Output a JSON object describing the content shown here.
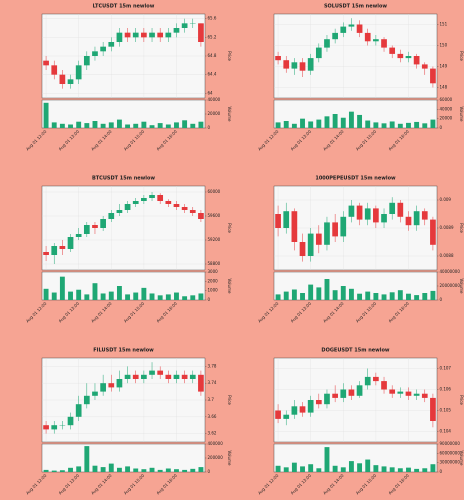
{
  "chart_data": [
    {
      "type": "candlestick",
      "title": "LTCUSDT 15m newlow",
      "y_label": "Price",
      "volume_label": "Volume",
      "up_color": "#1fa774",
      "down_color": "#e5393c",
      "volume_color": "#1fa774",
      "grid": true,
      "categories": [
        "Aug 01 12:00",
        null,
        null,
        null,
        "Aug 01 13:00",
        null,
        null,
        null,
        "Aug 01 14:00",
        null,
        null,
        null,
        "Aug 01 15:00",
        null,
        null,
        null,
        "Aug 01 16:00",
        null,
        null,
        null
      ],
      "open": [
        64.7,
        64.6,
        64.4,
        64.2,
        64.3,
        64.6,
        64.8,
        64.9,
        65.0,
        65.1,
        65.3,
        65.2,
        65.3,
        65.2,
        65.3,
        65.2,
        65.3,
        65.4,
        65.5,
        65.5
      ],
      "high": [
        64.8,
        64.7,
        64.5,
        64.4,
        64.7,
        64.9,
        65.0,
        65.1,
        65.2,
        65.4,
        65.4,
        65.4,
        65.4,
        65.4,
        65.4,
        65.4,
        65.5,
        65.6,
        65.6,
        65.5
      ],
      "low": [
        64.5,
        64.3,
        64.1,
        64.1,
        64.2,
        64.5,
        64.7,
        64.8,
        64.9,
        65.0,
        65.1,
        65.1,
        65.1,
        65.1,
        65.1,
        65.1,
        65.2,
        65.3,
        65.4,
        65.0
      ],
      "close": [
        64.6,
        64.4,
        64.2,
        64.3,
        64.6,
        64.8,
        64.9,
        65.0,
        65.1,
        65.3,
        65.2,
        65.3,
        65.2,
        65.3,
        65.2,
        65.3,
        65.4,
        65.5,
        65.5,
        65.1
      ],
      "volume": [
        36000,
        8000,
        6000,
        5000,
        9000,
        7000,
        10000,
        6000,
        8000,
        12000,
        5000,
        6000,
        9000,
        4000,
        7000,
        5000,
        8000,
        11000,
        6000,
        9000
      ],
      "ylim": [
        63.9,
        65.7
      ],
      "yticks": [
        64.0,
        64.4,
        64.8,
        65.2,
        65.6
      ],
      "volume_ylim": [
        0,
        40000
      ],
      "volume_yticks": [
        0,
        20000,
        40000
      ]
    },
    {
      "type": "candlestick",
      "title": "SOLUSDT 15m newlow",
      "y_label": "Price",
      "volume_label": "Volume",
      "up_color": "#1fa774",
      "down_color": "#e5393c",
      "volume_color": "#1fa774",
      "grid": true,
      "categories": [
        "Aug 01 12:00",
        null,
        null,
        null,
        "Aug 01 13:00",
        null,
        null,
        null,
        "Aug 01 14:00",
        null,
        null,
        null,
        "Aug 01 15:00",
        null,
        null,
        null,
        "Aug 01 16:00",
        null,
        null,
        null
      ],
      "open": [
        149.5,
        149.3,
        148.9,
        149.2,
        148.8,
        149.4,
        149.9,
        150.3,
        150.6,
        150.9,
        151.0,
        150.6,
        150.2,
        150.3,
        149.9,
        149.6,
        149.4,
        149.5,
        149.1,
        148.9
      ],
      "high": [
        149.7,
        149.5,
        149.4,
        149.4,
        149.6,
        150.1,
        150.5,
        150.8,
        151.1,
        151.3,
        151.2,
        150.8,
        150.5,
        150.4,
        150.0,
        149.8,
        149.7,
        149.6,
        149.2,
        149.0
      ],
      "low": [
        149.1,
        148.7,
        148.6,
        148.5,
        148.6,
        149.2,
        149.7,
        150.1,
        150.4,
        150.7,
        150.4,
        150.0,
        150.0,
        149.7,
        149.4,
        149.2,
        149.2,
        148.9,
        148.6,
        148.0
      ],
      "close": [
        149.3,
        148.9,
        149.2,
        148.8,
        149.4,
        149.9,
        150.3,
        150.6,
        150.9,
        151.0,
        150.6,
        150.2,
        150.3,
        149.9,
        149.6,
        149.4,
        149.5,
        149.1,
        148.9,
        148.2
      ],
      "volume": [
        12000,
        15000,
        9000,
        20000,
        14000,
        18000,
        25000,
        30000,
        22000,
        35000,
        28000,
        16000,
        12000,
        10000,
        14000,
        9000,
        11000,
        13000,
        10000,
        18000
      ],
      "ylim": [
        147.5,
        151.5
      ],
      "yticks": [
        148,
        149,
        150,
        151
      ],
      "volume_ylim": [
        0,
        60000
      ],
      "volume_yticks": [
        0,
        20000,
        40000,
        60000
      ]
    },
    {
      "type": "candlestick",
      "title": "BTCUSDT 15m newlow",
      "y_label": "Price",
      "volume_label": "Volume",
      "up_color": "#1fa774",
      "down_color": "#e5393c",
      "volume_color": "#1fa774",
      "grid": true,
      "categories": [
        "Aug 01 12:00",
        null,
        null,
        null,
        "Aug 01 13:00",
        null,
        null,
        null,
        "Aug 01 14:00",
        null,
        null,
        null,
        "Aug 01 15:00",
        null,
        null,
        null,
        "Aug 01 16:00",
        null,
        null,
        null
      ],
      "open": [
        59000,
        58950,
        59100,
        59050,
        59250,
        59300,
        59450,
        59400,
        59550,
        59650,
        59700,
        59800,
        59850,
        59900,
        59950,
        59850,
        59800,
        59750,
        59700,
        59650
      ],
      "high": [
        59100,
        59150,
        59200,
        59300,
        59400,
        59500,
        59500,
        59600,
        59700,
        59800,
        59850,
        59900,
        59950,
        60000,
        59980,
        59880,
        59850,
        59800,
        59750,
        59700
      ],
      "low": [
        58850,
        58800,
        58950,
        59000,
        59200,
        59250,
        59300,
        59350,
        59500,
        59600,
        59650,
        59750,
        59800,
        59850,
        59800,
        59750,
        59700,
        59650,
        59600,
        59500
      ],
      "close": [
        58950,
        59100,
        59050,
        59250,
        59300,
        59450,
        59400,
        59550,
        59650,
        59700,
        59800,
        59850,
        59900,
        59950,
        59850,
        59800,
        59750,
        59700,
        59650,
        59550
      ],
      "volume": [
        1200,
        800,
        2500,
        900,
        1100,
        600,
        1800,
        700,
        900,
        1500,
        600,
        800,
        1300,
        700,
        500,
        600,
        800,
        400,
        500,
        700
      ],
      "ylim": [
        58700,
        60100
      ],
      "yticks": [
        58800,
        59200,
        59600,
        60000
      ],
      "volume_ylim": [
        0,
        3000
      ],
      "volume_yticks": [
        0,
        1000,
        2000,
        3000
      ]
    },
    {
      "type": "candlestick",
      "title": "1000PEPEUSDT 15m newlow",
      "y_label": "Price",
      "volume_label": "Volume",
      "up_color": "#1fa774",
      "down_color": "#e5393c",
      "volume_color": "#1fa774",
      "grid": true,
      "categories": [
        "Aug 01 12:00",
        null,
        null,
        null,
        "Aug 01 13:00",
        null,
        null,
        null,
        "Aug 01 14:00",
        null,
        null,
        null,
        "Aug 01 15:00",
        null,
        null,
        null,
        "Aug 01 16:00",
        null,
        null,
        null
      ],
      "open": [
        0.00895,
        0.0089,
        0.00896,
        0.00885,
        0.0088,
        0.00888,
        0.00884,
        0.00892,
        0.00887,
        0.00894,
        0.00898,
        0.00893,
        0.00897,
        0.00892,
        0.00895,
        0.00899,
        0.00894,
        0.00891,
        0.00896,
        0.00893
      ],
      "high": [
        0.00898,
        0.00899,
        0.00897,
        0.00888,
        0.0089,
        0.00891,
        0.00894,
        0.00895,
        0.00896,
        0.009,
        0.00899,
        0.00899,
        0.00898,
        0.00897,
        0.00901,
        0.009,
        0.00896,
        0.00898,
        0.00897,
        0.00894
      ],
      "low": [
        0.00887,
        0.00888,
        0.00882,
        0.00878,
        0.00878,
        0.00881,
        0.00882,
        0.00885,
        0.00885,
        0.00892,
        0.00891,
        0.00891,
        0.0089,
        0.0089,
        0.00893,
        0.00892,
        0.00889,
        0.00889,
        0.00891,
        0.00882
      ],
      "close": [
        0.0089,
        0.00896,
        0.00885,
        0.0088,
        0.00888,
        0.00884,
        0.00892,
        0.00887,
        0.00894,
        0.00898,
        0.00893,
        0.00897,
        0.00892,
        0.00895,
        0.00899,
        0.00894,
        0.00891,
        0.00896,
        0.00893,
        0.00884
      ],
      "volume": [
        8000000,
        12000000,
        15000000,
        10000000,
        22000000,
        18000000,
        30000000,
        14000000,
        20000000,
        16000000,
        9000000,
        12000000,
        10000000,
        8000000,
        11000000,
        14000000,
        9000000,
        7000000,
        10000000,
        13000000
      ],
      "ylim": [
        0.00875,
        0.00905
      ],
      "yticks": [
        0.0088,
        0.0089,
        0.009
      ],
      "volume_ylim": [
        0,
        40000000
      ],
      "volume_yticks": [
        0,
        20000000,
        40000000
      ]
    },
    {
      "type": "candlestick",
      "title": "FILUSDT 15m newlow",
      "y_label": "Price",
      "volume_label": "Volume",
      "up_color": "#1fa774",
      "down_color": "#e5393c",
      "volume_color": "#1fa774",
      "grid": true,
      "categories": [
        "Aug 01 12:00",
        null,
        null,
        null,
        "Aug 01 13:00",
        null,
        null,
        null,
        "Aug 01 14:00",
        null,
        null,
        null,
        "Aug 01 15:00",
        null,
        null,
        null,
        "Aug 01 16:00",
        null,
        null,
        null
      ],
      "open": [
        3.64,
        3.63,
        3.64,
        3.64,
        3.66,
        3.69,
        3.71,
        3.72,
        3.74,
        3.73,
        3.75,
        3.76,
        3.75,
        3.76,
        3.77,
        3.76,
        3.75,
        3.76,
        3.75,
        3.76
      ],
      "high": [
        3.65,
        3.65,
        3.65,
        3.67,
        3.71,
        3.74,
        3.74,
        3.76,
        3.76,
        3.77,
        3.78,
        3.77,
        3.77,
        3.79,
        3.78,
        3.77,
        3.77,
        3.77,
        3.77,
        3.77
      ],
      "low": [
        3.62,
        3.62,
        3.63,
        3.63,
        3.65,
        3.68,
        3.7,
        3.71,
        3.72,
        3.72,
        3.74,
        3.74,
        3.74,
        3.75,
        3.75,
        3.74,
        3.74,
        3.74,
        3.74,
        3.71
      ],
      "close": [
        3.63,
        3.64,
        3.64,
        3.66,
        3.69,
        3.71,
        3.72,
        3.74,
        3.73,
        3.75,
        3.76,
        3.75,
        3.76,
        3.77,
        3.76,
        3.75,
        3.76,
        3.75,
        3.76,
        3.72
      ],
      "volume": [
        30000,
        20000,
        25000,
        60000,
        80000,
        370000,
        90000,
        70000,
        120000,
        60000,
        80000,
        50000,
        40000,
        60000,
        30000,
        50000,
        40000,
        30000,
        45000,
        70000
      ],
      "ylim": [
        3.6,
        3.8
      ],
      "yticks": [
        3.62,
        3.66,
        3.7,
        3.74,
        3.78
      ],
      "volume_ylim": [
        0,
        400000
      ],
      "volume_yticks": [
        0,
        200000,
        400000
      ]
    },
    {
      "type": "candlestick",
      "title": "DOGEUSDT 15m newlow",
      "y_label": "Price",
      "volume_label": "Volume",
      "up_color": "#1fa774",
      "down_color": "#e5393c",
      "volume_color": "#1fa774",
      "grid": true,
      "categories": [
        "Aug 01 12:00",
        null,
        null,
        null,
        "Aug 01 13:00",
        null,
        null,
        null,
        "Aug 01 14:00",
        null,
        null,
        null,
        "Aug 01 15:00",
        null,
        null,
        null,
        "Aug 01 16:00",
        null,
        null,
        null
      ],
      "open": [
        0.105,
        0.1046,
        0.1048,
        0.1052,
        0.1049,
        0.1055,
        0.1053,
        0.1058,
        0.1056,
        0.106,
        0.1057,
        0.1062,
        0.1066,
        0.1064,
        0.106,
        0.1058,
        0.1059,
        0.1057,
        0.1058,
        0.1056
      ],
      "high": [
        0.1053,
        0.105,
        0.1055,
        0.1054,
        0.1057,
        0.1058,
        0.106,
        0.1062,
        0.1063,
        0.1062,
        0.1064,
        0.107,
        0.1068,
        0.1066,
        0.1062,
        0.1061,
        0.1061,
        0.106,
        0.106,
        0.1058
      ],
      "low": [
        0.1044,
        0.1043,
        0.1046,
        0.1047,
        0.1047,
        0.1051,
        0.1051,
        0.1054,
        0.1054,
        0.1055,
        0.1056,
        0.106,
        0.1062,
        0.1058,
        0.1056,
        0.1056,
        0.1055,
        0.1055,
        0.1054,
        0.1042
      ],
      "close": [
        0.1046,
        0.1048,
        0.1052,
        0.1049,
        0.1055,
        0.1053,
        0.1058,
        0.1056,
        0.106,
        0.1057,
        0.1062,
        0.1066,
        0.1064,
        0.106,
        0.1058,
        0.1059,
        0.1057,
        0.1058,
        0.1056,
        0.1045
      ],
      "volume": [
        20000000,
        15000000,
        30000000,
        18000000,
        25000000,
        12000000,
        80000000,
        20000000,
        15000000,
        35000000,
        28000000,
        40000000,
        22000000,
        18000000,
        15000000,
        12000000,
        14000000,
        10000000,
        12000000,
        25000000
      ],
      "ylim": [
        0.1035,
        0.1075
      ],
      "yticks": [
        0.104,
        0.105,
        0.106,
        0.107
      ],
      "volume_ylim": [
        0,
        90000000
      ],
      "volume_yticks": [
        0,
        30000000,
        60000000,
        90000000
      ]
    }
  ]
}
